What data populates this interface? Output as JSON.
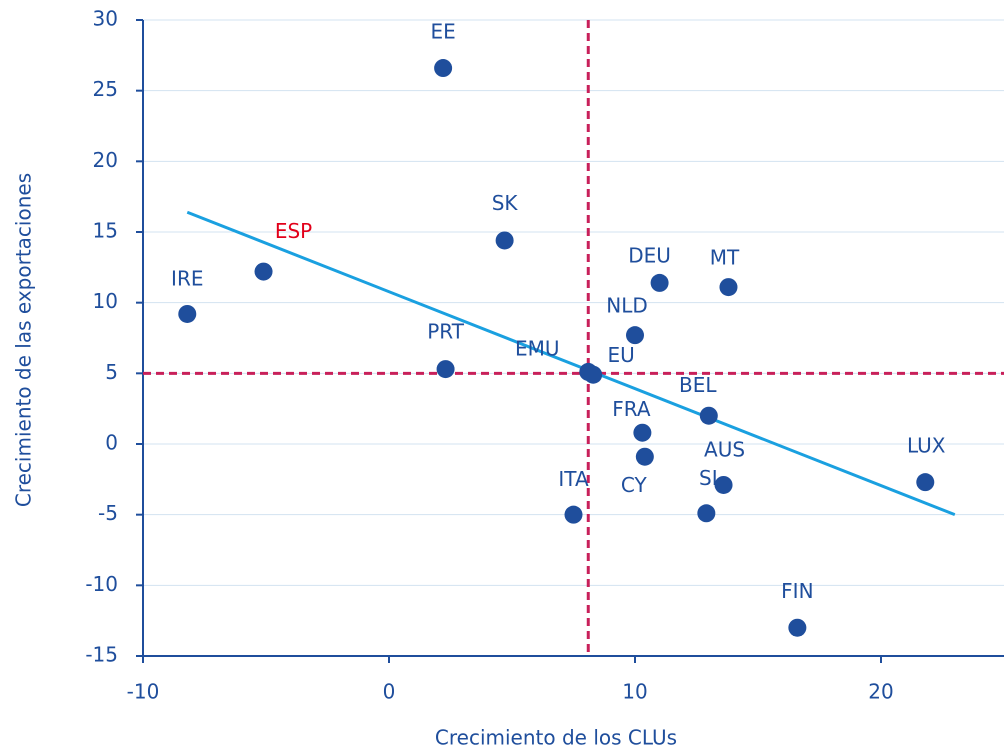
{
  "chart_data": {
    "type": "scatter",
    "x_label": "Crecimiento de los CLUs",
    "y_label": "Crecimiento de las exportaciones",
    "xlim": [
      -10,
      25
    ],
    "ylim": [
      -15,
      30
    ],
    "xticks": [
      -10,
      0,
      10,
      20
    ],
    "yticks": [
      -15,
      -10,
      -5,
      0,
      5,
      10,
      15,
      20,
      25,
      30
    ],
    "grid": true,
    "series": [
      {
        "color": "#1f4e9c",
        "labels": [
          "EE",
          "SK",
          "ESP",
          "IRE",
          "PRT",
          "EMU",
          "EU",
          "NLD",
          "DEU",
          "MT",
          "BEL",
          "FRA",
          "CY",
          "AUS",
          "SI",
          "ITA",
          "LUX",
          "FIN"
        ],
        "label_colors": [
          "#1f4e9c",
          "#1f4e9c",
          "#e2001a",
          "#1f4e9c",
          "#1f4e9c",
          "#1f4e9c",
          "#1f4e9c",
          "#1f4e9c",
          "#1f4e9c",
          "#1f4e9c",
          "#1f4e9c",
          "#1f4e9c",
          "#1f4e9c",
          "#1f4e9c",
          "#1f4e9c",
          "#1f4e9c",
          "#1f4e9c",
          "#1f4e9c"
        ],
        "x": [
          2.2,
          4.7,
          -5.1,
          -8.2,
          2.3,
          8.1,
          8.3,
          10.0,
          11.0,
          13.8,
          13.0,
          10.3,
          10.4,
          13.6,
          12.9,
          7.5,
          21.8,
          16.6
        ],
        "y": [
          26.6,
          14.4,
          12.2,
          9.2,
          5.3,
          5.1,
          4.9,
          7.7,
          11.4,
          11.1,
          2.0,
          0.8,
          -0.9,
          -2.9,
          -4.9,
          -5.0,
          -2.7,
          -13.0
        ]
      }
    ],
    "trend_line": {
      "color": "#1aa0e0",
      "x": [
        -8.2,
        23.0
      ],
      "y": [
        16.4,
        -5.0
      ]
    },
    "ref_lines": {
      "color": "#c8205a",
      "x": 8.1,
      "y": 5
    }
  }
}
